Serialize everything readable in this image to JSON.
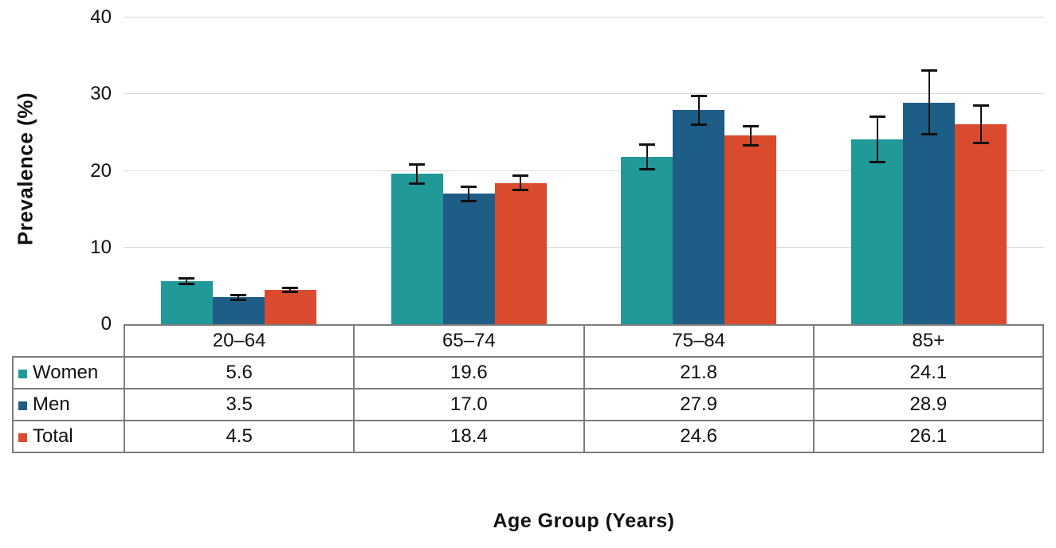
{
  "chart_data": {
    "type": "bar",
    "title": "",
    "xlabel": "Age Group (Years)",
    "ylabel": "Prevalence (%)",
    "ylim": [
      0,
      40
    ],
    "yticks": [
      0,
      10,
      20,
      30,
      40
    ],
    "grid": true,
    "legend_position": "table-left",
    "categories": [
      "20–64",
      "65–74",
      "75–84",
      "85+"
    ],
    "series": [
      {
        "name": "Women",
        "color": "#219999",
        "values": [
          5.6,
          19.6,
          21.8,
          24.1
        ],
        "errors": [
          0.5,
          1.4,
          1.8,
          3.1
        ]
      },
      {
        "name": "Men",
        "color": "#1E5D86",
        "values": [
          3.5,
          17.0,
          27.9,
          28.9
        ],
        "errors": [
          0.5,
          1.1,
          2.0,
          4.3
        ]
      },
      {
        "name": "Total",
        "color": "#DA4A2C",
        "values": [
          4.5,
          18.4,
          24.6,
          26.1
        ],
        "errors": [
          0.4,
          1.1,
          1.4,
          2.6
        ]
      }
    ]
  },
  "table": {
    "header": [
      "20–64",
      "65–74",
      "75–84",
      "85+"
    ],
    "rows": [
      {
        "label": "Women",
        "values": [
          "5.6",
          "19.6",
          "21.8",
          "24.1"
        ]
      },
      {
        "label": "Men",
        "values": [
          "3.5",
          "17.0",
          "27.9",
          "28.9"
        ]
      },
      {
        "label": "Total",
        "values": [
          "4.5",
          "18.4",
          "24.6",
          "26.1"
        ]
      }
    ]
  }
}
